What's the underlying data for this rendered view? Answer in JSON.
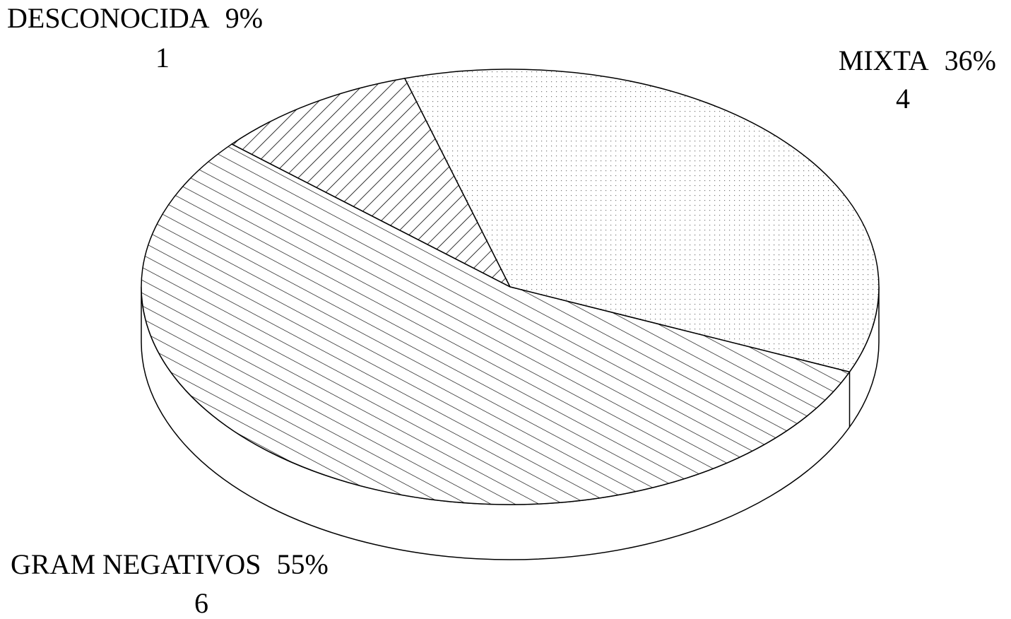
{
  "chart_data": {
    "type": "pie",
    "categories": [
      "DESCONOCIDA",
      "MIXTA",
      "GRAM NEGATIVOS"
    ],
    "values": [
      9,
      36,
      55
    ],
    "value_labels": [
      "9%",
      "36%",
      "55%"
    ],
    "counts": [
      1,
      4,
      6
    ]
  }
}
